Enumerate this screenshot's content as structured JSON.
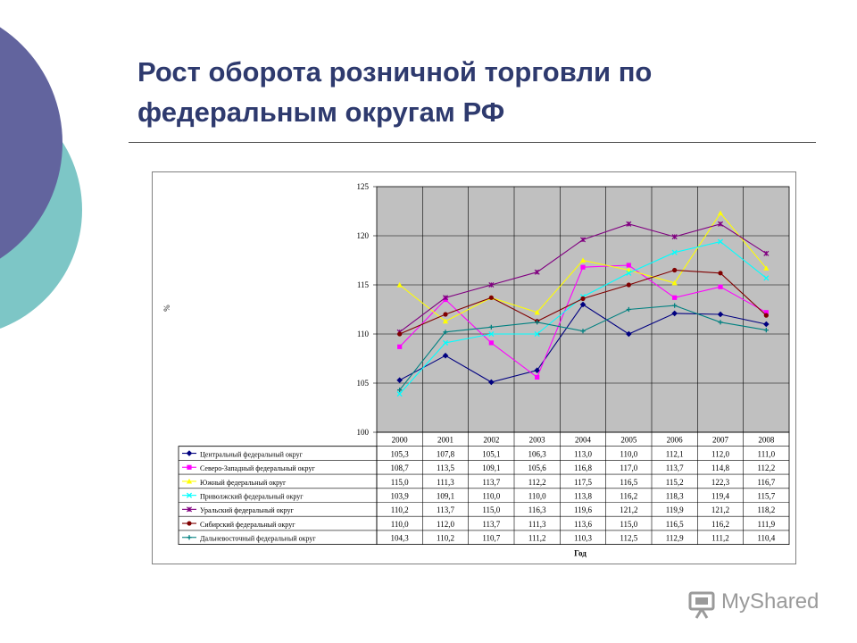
{
  "slide": {
    "title": "Рост оборота розничной торговли по федеральным округам РФ"
  },
  "watermark": {
    "brand": "MyShared"
  },
  "colors": {
    "background_circle": "#62649e",
    "accent_circle": "#7dc6c6",
    "title": "#2e3a6e",
    "plot_area": "#c0c0c0"
  },
  "chart_data": {
    "type": "line",
    "title": "",
    "xlabel": "Год",
    "ylabel": "%",
    "ylim": [
      100,
      125
    ],
    "yticks": [
      100,
      105,
      110,
      115,
      120,
      125
    ],
    "grid": true,
    "categories": [
      "2000",
      "2001",
      "2002",
      "2003",
      "2004",
      "2005",
      "2006",
      "2007",
      "2008"
    ],
    "legend": "data-table-below",
    "series": [
      {
        "name": "Центральный федеральный округ",
        "color": "#000080",
        "marker": "diamond",
        "values": [
          105.3,
          107.8,
          105.1,
          106.3,
          113.0,
          110.0,
          112.1,
          112.0,
          111.0
        ]
      },
      {
        "name": "Северо-Западный федеральный округ",
        "color": "#ff00ff",
        "marker": "square",
        "values": [
          108.7,
          113.5,
          109.1,
          105.6,
          116.8,
          117.0,
          113.7,
          114.8,
          112.2
        ]
      },
      {
        "name": "Южный федеральный округ",
        "color": "#ffff00",
        "marker": "triangle",
        "values": [
          115.0,
          111.3,
          113.7,
          112.2,
          117.5,
          116.5,
          115.2,
          122.3,
          116.7
        ]
      },
      {
        "name": "Приволжский федеральный округ",
        "color": "#00ffff",
        "marker": "x",
        "values": [
          103.9,
          109.1,
          110.0,
          110.0,
          113.8,
          116.2,
          118.3,
          119.4,
          115.7
        ]
      },
      {
        "name": "Уральский федеральный округ",
        "color": "#800080",
        "marker": "star",
        "values": [
          110.2,
          113.7,
          115.0,
          116.3,
          119.6,
          121.2,
          119.9,
          121.2,
          118.2
        ]
      },
      {
        "name": "Сибирский федеральный округ",
        "color": "#800000",
        "marker": "circle",
        "values": [
          110.0,
          112.0,
          113.7,
          111.3,
          113.6,
          115.0,
          116.5,
          116.2,
          111.9
        ]
      },
      {
        "name": "Дальневосточный федеральный округ",
        "color": "#008080",
        "marker": "plus",
        "values": [
          104.3,
          110.2,
          110.7,
          111.2,
          110.3,
          112.5,
          112.9,
          111.2,
          110.4
        ]
      }
    ],
    "table_values": [
      [
        "105,3",
        "107,8",
        "105,1",
        "106,3",
        "113,0",
        "110,0",
        "112,1",
        "112,0",
        "111,0"
      ],
      [
        "108,7",
        "113,5",
        "109,1",
        "105,6",
        "116,8",
        "117,0",
        "113,7",
        "114,8",
        "112,2"
      ],
      [
        "115,0",
        "111,3",
        "113,7",
        "112,2",
        "117,5",
        "116,5",
        "115,2",
        "122,3",
        "116,7"
      ],
      [
        "103,9",
        "109,1",
        "110,0",
        "110,0",
        "113,8",
        "116,2",
        "118,3",
        "119,4",
        "115,7"
      ],
      [
        "110,2",
        "113,7",
        "115,0",
        "116,3",
        "119,6",
        "121,2",
        "119,9",
        "121,2",
        "118,2"
      ],
      [
        "110,0",
        "112,0",
        "113,7",
        "111,3",
        "113,6",
        "115,0",
        "116,5",
        "116,2",
        "111,9"
      ],
      [
        "104,3",
        "110,2",
        "110,7",
        "111,2",
        "110,3",
        "112,5",
        "112,9",
        "111,2",
        "110,4"
      ]
    ]
  }
}
